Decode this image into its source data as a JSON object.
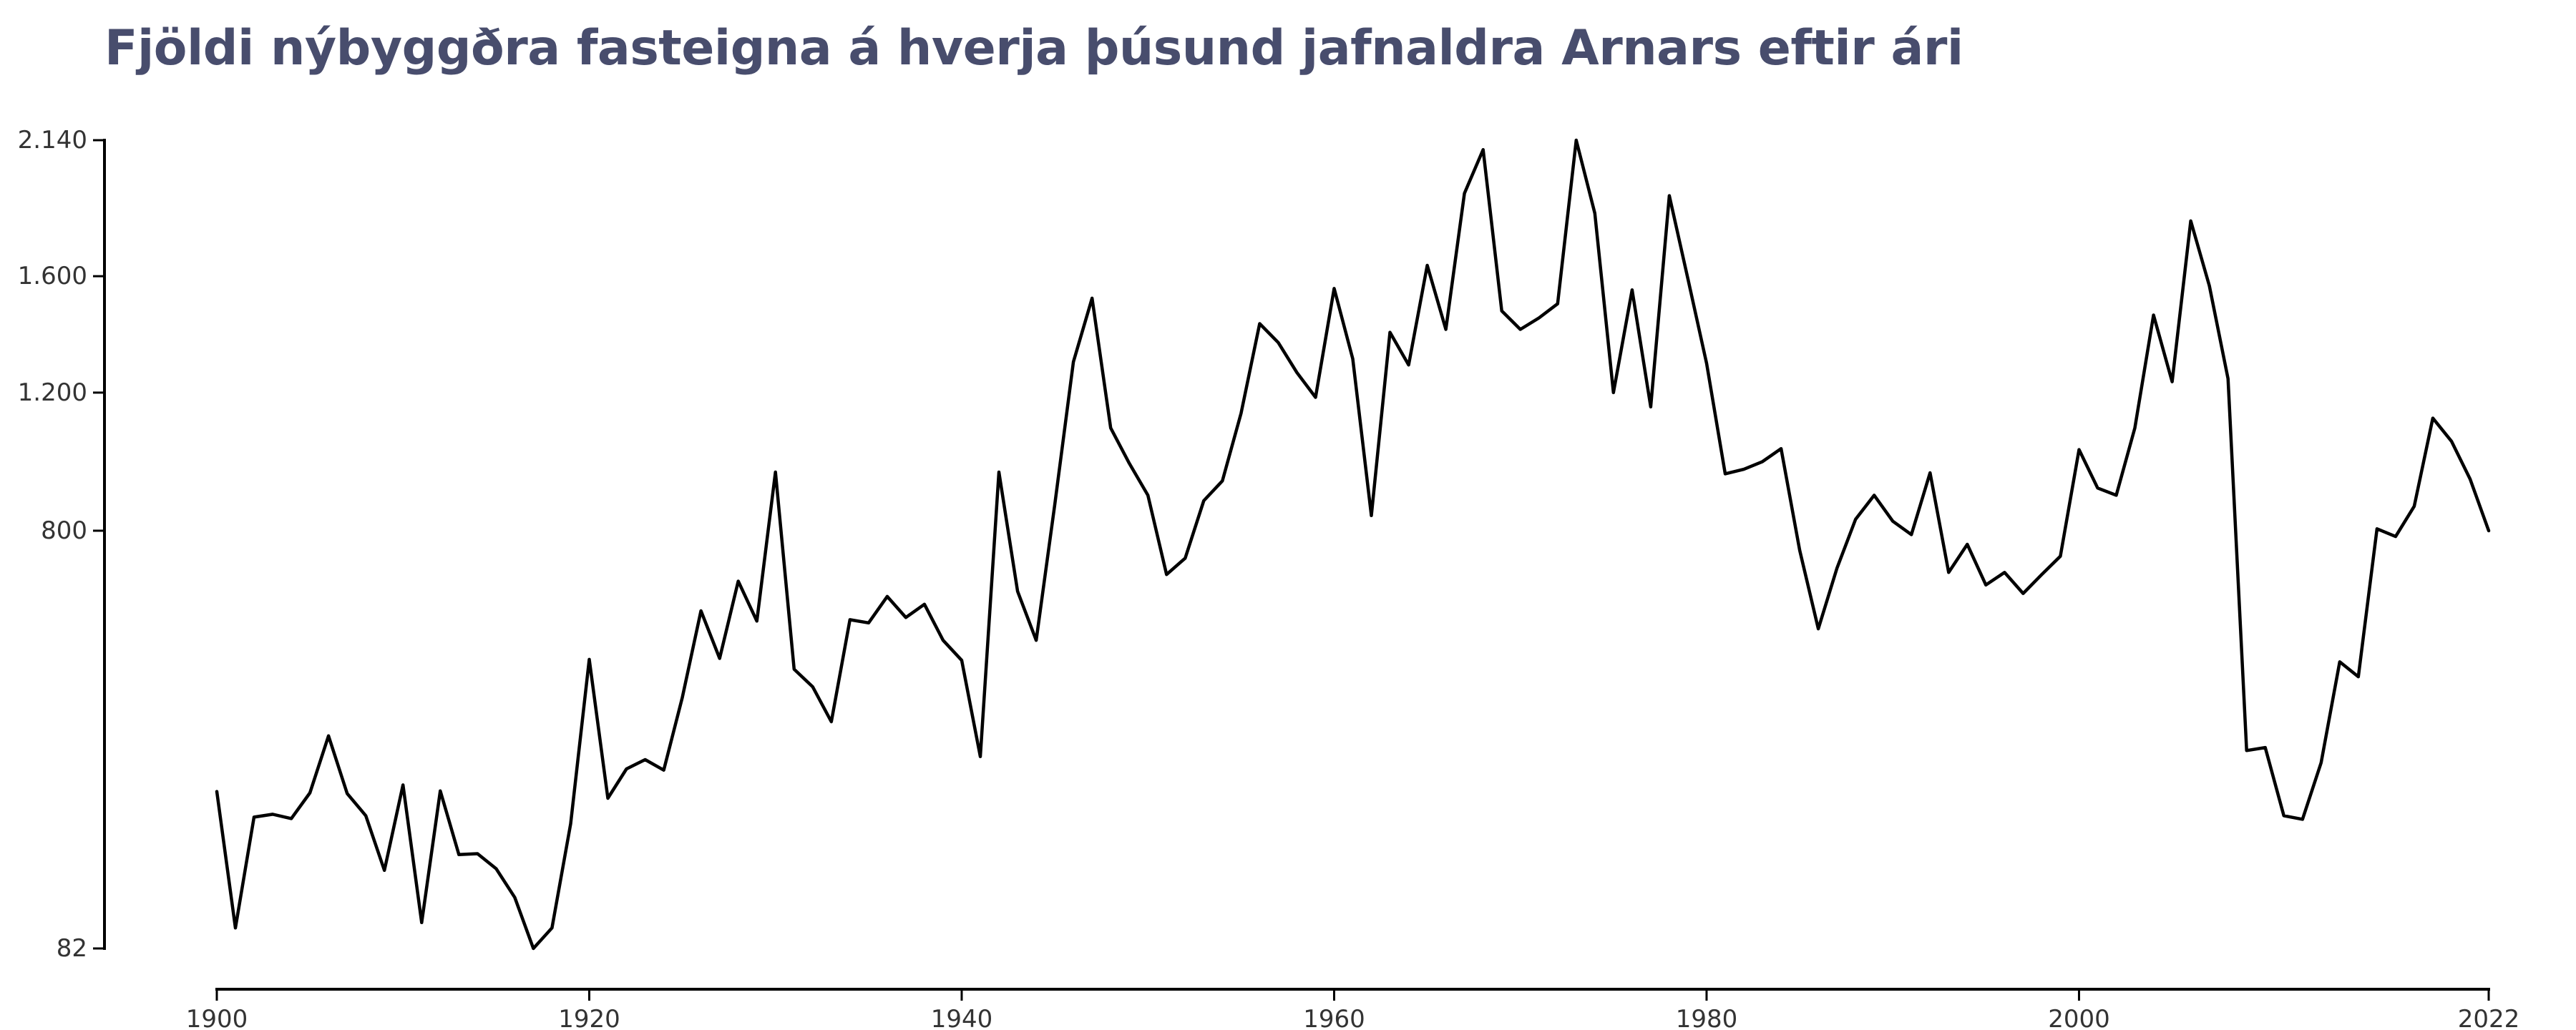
{
  "chart_data": {
    "type": "line",
    "title": "Fjöldi nýbyggðra fasteigna á hverja þúsund jafnaldra Arnars eftir ári",
    "xlabel": "",
    "ylabel": "",
    "y_scale": "sqrt",
    "xlim": [
      1900,
      2022
    ],
    "ylim": [
      82,
      2140
    ],
    "x_ticks": [
      1900,
      1920,
      1940,
      1960,
      1980,
      2000,
      2022
    ],
    "x_tick_labels": [
      "1900",
      "1920",
      "1940",
      "1960",
      "1980",
      "2000",
      "2022"
    ],
    "y_ticks": [
      82,
      800,
      1200,
      1600,
      2140
    ],
    "y_tick_labels": [
      "82",
      "800",
      "1.200",
      "1.600",
      "2.140"
    ],
    "grid": false,
    "legend": "none",
    "colors": {
      "line": "#000000",
      "title": "#484d6d",
      "axis": "#000000"
    },
    "series": [
      {
        "x": [
          1900,
          1901,
          1902,
          1903,
          1904,
          1905,
          1906,
          1907,
          1908,
          1909,
          1910,
          1911,
          1912,
          1913,
          1914,
          1915,
          1916,
          1917,
          1918,
          1919,
          1920,
          1921,
          1922,
          1923,
          1924,
          1925,
          1926,
          1927,
          1928,
          1929,
          1930,
          1931,
          1932,
          1933,
          1934,
          1935,
          1936,
          1937,
          1938,
          1939,
          1940,
          1941,
          1942,
          1943,
          1944,
          1945,
          1946,
          1947,
          1948,
          1949,
          1950,
          1951,
          1952,
          1953,
          1954,
          1955,
          1956,
          1957,
          1958,
          1959,
          1960,
          1961,
          1962,
          1963,
          1964,
          1965,
          1966,
          1967,
          1968,
          1969,
          1970,
          1971,
          1972,
          1973,
          1974,
          1975,
          1976,
          1977,
          1978,
          1979,
          1980,
          1981,
          1982,
          1983,
          1984,
          1985,
          1986,
          1987,
          1988,
          1989,
          1990,
          1991,
          1992,
          1993,
          1994,
          1995,
          1996,
          1997,
          1998,
          1999,
          2000,
          2001,
          2002,
          2003,
          2004,
          2005,
          2006,
          2007,
          2008,
          2009,
          2010,
          2011,
          2012,
          2013,
          2014,
          2015,
          2016,
          2017,
          2018,
          2019,
          2020,
          2021,
          2022
        ],
        "values": [
          265,
          100,
          228,
          232,
          226,
          263,
          355,
          262,
          230,
          160,
          275,
          105,
          266,
          179,
          180,
          162,
          130,
          82,
          100,
          219,
          500,
          255,
          300,
          315,
          298,
          425,
          605,
          502,
          674,
          582,
          960,
          480,
          445,
          380,
          585,
          578,
          638,
          590,
          620,
          540,
          498,
          320,
          960,
          650,
          540,
          870,
          1300,
          1520,
          1090,
          985,
          895,
          690,
          730,
          880,
          935,
          1135,
          1430,
          1365,
          1265,
          1185,
          1555,
          1310,
          840,
          1400,
          1290,
          1640,
          1410,
          1920,
          2100,
          1475,
          1410,
          1450,
          1500,
          2140,
          1840,
          1200,
          1550,
          1155,
          1910,
          1590,
          1295,
          955,
          968,
          990,
          1028,
          750,
          565,
          705,
          830,
          895,
          825,
          790,
          958,
          695,
          765,
          665,
          695,
          645,
          690,
          735,
          1025,
          915,
          895,
          1090,
          1460,
          1235,
          1810,
          1565,
          1245,
          330,
          335,
          230,
          225,
          310,
          495,
          465,
          805,
          785,
          865,
          1120,
          1050,
          940,
          800
        ]
      }
    ]
  }
}
